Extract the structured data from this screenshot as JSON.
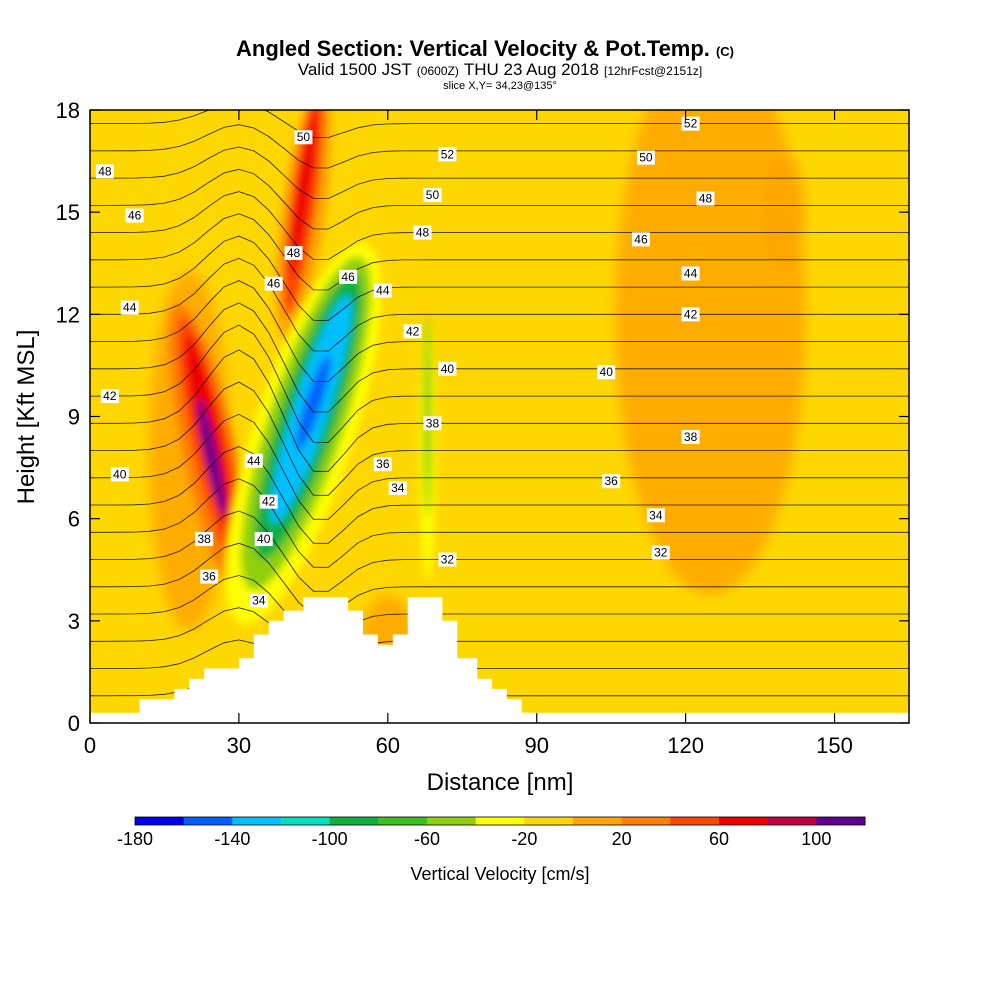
{
  "title": {
    "main": "Angled Section: Vertical Velocity & Pot.Temp.",
    "main_tag": "(C)",
    "valid_prefix": "Valid 1500 JST",
    "valid_utc": "(0600Z)",
    "valid_date": "THU 23 Aug 2018",
    "forecast": "[12hrFcst@2151z]",
    "slice": "slice X,Y= 34,23@135°"
  },
  "chart_data": {
    "type": "heatmap",
    "xlabel": "Distance [nm]",
    "ylabel": "Height [Kft MSL]",
    "xlim": [
      0,
      165
    ],
    "ylim": [
      0,
      18
    ],
    "x_ticks": [
      "0",
      "30",
      "60",
      "90",
      "120",
      "150"
    ],
    "y_ticks": [
      "0",
      "3",
      "6",
      "9",
      "12",
      "15",
      "18"
    ],
    "colorbar": {
      "label": "Vertical Velocity [cm/s]",
      "min": -180,
      "max": 120,
      "step": 20,
      "tick_labels": [
        "-180",
        "-140",
        "-100",
        "-60",
        "-20",
        "20",
        "60",
        "100"
      ],
      "colors": [
        "#0000ee",
        "#0060ff",
        "#00c0ff",
        "#00e0c0",
        "#10b040",
        "#40c020",
        "#90d010",
        "#ffff00",
        "#ffd700",
        "#ffa500",
        "#ff7f00",
        "#ff4500",
        "#ee0000",
        "#c00040",
        "#600090"
      ]
    },
    "features": [
      {
        "kind": "updraft",
        "x": 24,
        "y": 8.5,
        "peak": 110
      },
      {
        "kind": "updraft",
        "x": 43,
        "y": 15.5,
        "peak": 70
      },
      {
        "kind": "downdraft",
        "x": 45,
        "y": 9,
        "peak": -150
      },
      {
        "kind": "downdraft",
        "x": 68,
        "y": 9,
        "peak": -50
      }
    ],
    "terrain": [
      [
        10,
        0.7
      ],
      [
        17,
        0.7
      ],
      [
        17,
        1.0
      ],
      [
        20,
        1.0
      ],
      [
        20,
        1.3
      ],
      [
        23,
        1.3
      ],
      [
        23,
        1.6
      ],
      [
        30,
        1.6
      ],
      [
        30,
        1.9
      ],
      [
        33,
        1.9
      ],
      [
        33,
        2.6
      ],
      [
        36,
        2.6
      ],
      [
        36,
        3.0
      ],
      [
        39,
        3.0
      ],
      [
        39,
        3.3
      ],
      [
        43,
        3.3
      ],
      [
        43,
        3.7
      ],
      [
        52,
        3.7
      ],
      [
        52,
        3.3
      ],
      [
        55,
        3.3
      ],
      [
        55,
        2.6
      ],
      [
        58,
        2.6
      ],
      [
        58,
        2.3
      ],
      [
        61,
        2.3
      ],
      [
        61,
        2.6
      ],
      [
        64,
        2.6
      ],
      [
        64,
        3.7
      ],
      [
        71,
        3.7
      ],
      [
        71,
        3.0
      ],
      [
        74,
        3.0
      ],
      [
        74,
        1.9
      ],
      [
        78,
        1.9
      ],
      [
        78,
        1.3
      ],
      [
        81,
        1.3
      ],
      [
        81,
        1.0
      ],
      [
        84,
        1.0
      ],
      [
        84,
        0.7
      ],
      [
        87,
        0.7
      ],
      [
        87,
        0.3
      ],
      [
        90,
        0.3
      ]
    ],
    "contour_labels": [
      {
        "text": "52",
        "x": 121,
        "y": 17.6
      },
      {
        "text": "52",
        "x": 72,
        "y": 16.7
      },
      {
        "text": "50",
        "x": 43,
        "y": 17.2
      },
      {
        "text": "50",
        "x": 112,
        "y": 16.6
      },
      {
        "text": "48",
        "x": 3,
        "y": 16.2
      },
      {
        "text": "50",
        "x": 69,
        "y": 15.5
      },
      {
        "text": "48",
        "x": 124,
        "y": 15.4
      },
      {
        "text": "46",
        "x": 9,
        "y": 14.9
      },
      {
        "text": "48",
        "x": 67,
        "y": 14.4
      },
      {
        "text": "46",
        "x": 111,
        "y": 14.2
      },
      {
        "text": "48",
        "x": 41,
        "y": 13.8
      },
      {
        "text": "46",
        "x": 37,
        "y": 12.9
      },
      {
        "text": "46",
        "x": 52,
        "y": 13.1
      },
      {
        "text": "44",
        "x": 121,
        "y": 13.2
      },
      {
        "text": "44",
        "x": 59,
        "y": 12.7
      },
      {
        "text": "44",
        "x": 8,
        "y": 12.2
      },
      {
        "text": "42",
        "x": 121,
        "y": 12.0
      },
      {
        "text": "42",
        "x": 65,
        "y": 11.5
      },
      {
        "text": "40",
        "x": 72,
        "y": 10.4
      },
      {
        "text": "40",
        "x": 104,
        "y": 10.3
      },
      {
        "text": "42",
        "x": 4,
        "y": 9.6
      },
      {
        "text": "38",
        "x": 69,
        "y": 8.8
      },
      {
        "text": "38",
        "x": 121,
        "y": 8.4
      },
      {
        "text": "44",
        "x": 33,
        "y": 7.7
      },
      {
        "text": "36",
        "x": 59,
        "y": 7.6
      },
      {
        "text": "40",
        "x": 6,
        "y": 7.3
      },
      {
        "text": "36",
        "x": 105,
        "y": 7.1
      },
      {
        "text": "34",
        "x": 62,
        "y": 6.9
      },
      {
        "text": "42",
        "x": 36,
        "y": 6.5
      },
      {
        "text": "34",
        "x": 114,
        "y": 6.1
      },
      {
        "text": "38",
        "x": 23,
        "y": 5.4
      },
      {
        "text": "40",
        "x": 35,
        "y": 5.4
      },
      {
        "text": "32",
        "x": 115,
        "y": 5.0
      },
      {
        "text": "32",
        "x": 72,
        "y": 4.8
      },
      {
        "text": "36",
        "x": 24,
        "y": 4.3
      },
      {
        "text": "34",
        "x": 34,
        "y": 3.6
      }
    ]
  }
}
